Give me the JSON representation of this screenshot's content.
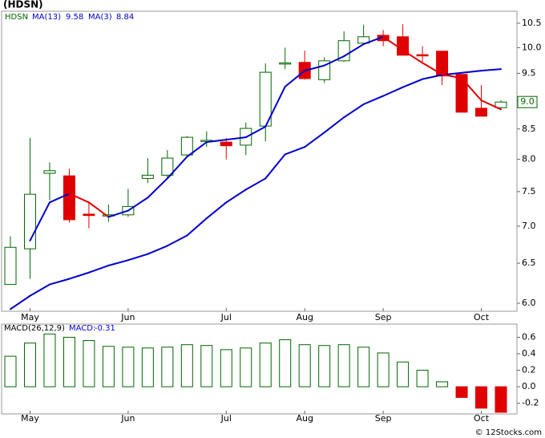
{
  "chart_data": [
    {
      "type": "candlestick",
      "title": "(HDSN)",
      "legend_label": "HDSN",
      "legend_values": [
        9.58,
        8.84
      ],
      "last_label": "9.0",
      "categories": [
        null,
        "May",
        null,
        null,
        null,
        null,
        "Jun",
        null,
        null,
        null,
        null,
        "Jul",
        null,
        null,
        null,
        "Aug",
        null,
        null,
        null,
        "Sep",
        null,
        null,
        null,
        null,
        "Oct",
        null
      ],
      "open": [
        6.23,
        6.69,
        7.78,
        7.74,
        7.17,
        7.15,
        7.16,
        7.7,
        7.75,
        8.07,
        8.29,
        8.28,
        8.23,
        8.55,
        9.68,
        9.71,
        9.38,
        9.74,
        10.09,
        10.25,
        10.22,
        9.86,
        9.93,
        9.48,
        8.86,
        8.87
      ],
      "high": [
        6.86,
        8.35,
        7.95,
        7.85,
        7.34,
        7.31,
        7.54,
        8.02,
        8.15,
        8.38,
        8.46,
        8.35,
        8.61,
        9.69,
        10.0,
        9.94,
        9.81,
        10.33,
        10.47,
        10.36,
        10.48,
        10.03,
        9.93,
        9.48,
        9.28,
        9.0
      ],
      "low": [
        6.23,
        6.3,
        7.37,
        7.05,
        6.97,
        7.06,
        7.13,
        7.63,
        7.7,
        8.05,
        8.2,
        8.0,
        8.07,
        8.29,
        9.58,
        9.38,
        9.32,
        9.72,
        10.07,
        10.03,
        9.84,
        9.72,
        9.28,
        8.79,
        8.72,
        8.86
      ],
      "close": [
        6.71,
        7.46,
        7.82,
        7.09,
        7.15,
        7.16,
        7.28,
        7.75,
        8.02,
        8.36,
        8.31,
        8.22,
        8.51,
        9.52,
        9.7,
        9.4,
        9.74,
        10.14,
        10.22,
        10.14,
        9.85,
        9.84,
        9.45,
        8.79,
        8.72,
        8.97
      ],
      "up_color": "#006600",
      "down_color": "#e00000",
      "series": [
        {
          "name": "MA(13)",
          "color": "#0000cc",
          "values": [
            5.93,
            6.09,
            6.23,
            6.3,
            6.38,
            6.47,
            6.54,
            6.62,
            6.73,
            6.87,
            7.11,
            7.34,
            7.53,
            7.7,
            8.08,
            8.2,
            8.44,
            8.7,
            8.93,
            9.08,
            9.24,
            9.39,
            9.47,
            9.51,
            9.55,
            9.58
          ]
        },
        {
          "name": "MA(3)",
          "color": "#0000cc",
          "down_color": "#e00000",
          "values": [
            null,
            6.8,
            7.34,
            7.47,
            7.34,
            7.13,
            7.22,
            7.41,
            7.7,
            8.04,
            8.28,
            8.32,
            8.36,
            8.54,
            9.25,
            9.55,
            9.65,
            9.83,
            10.07,
            10.22,
            9.95,
            9.7,
            9.48,
            9.41,
            9.0,
            8.84
          ]
        }
      ],
      "log_scale": true,
      "ylim": [
        5.905,
        10.755
      ],
      "yticks": [
        {
          "value": 6,
          "label": "6.0"
        },
        {
          "value": 6.5,
          "label": "6.5"
        },
        {
          "value": 7,
          "label": "7.0"
        },
        {
          "value": 7.5,
          "label": "7.5"
        },
        {
          "value": 8,
          "label": "8.0"
        },
        {
          "value": 8.5,
          "label": "8.5"
        },
        {
          "value": 9,
          "label": "9.0"
        },
        {
          "value": 9.5,
          "label": "9.5"
        },
        {
          "value": 10,
          "label": "10.0"
        },
        {
          "value": 10.5,
          "label": "10.5"
        }
      ]
    },
    {
      "type": "bar",
      "legend_label": "MACD(26,12,9)",
      "value_label": "MACD:",
      "last_value": -0.31,
      "categories": [
        null,
        "May",
        null,
        null,
        null,
        null,
        "Jun",
        null,
        null,
        null,
        null,
        "Jul",
        null,
        null,
        null,
        "Aug",
        null,
        null,
        null,
        "Sep",
        null,
        null,
        null,
        null,
        "Oct",
        null
      ],
      "values": [
        0.37,
        0.53,
        0.64,
        0.6,
        0.56,
        0.49,
        0.48,
        0.47,
        0.48,
        0.51,
        0.5,
        0.45,
        0.47,
        0.53,
        0.57,
        0.51,
        0.5,
        0.51,
        0.48,
        0.41,
        0.3,
        0.2,
        0.06,
        -0.13,
        -0.26,
        -0.31
      ],
      "color": "#006600",
      "negative_color": "#e00000",
      "ylim": [
        -0.33,
        0.76
      ],
      "yticks": [
        -0.2,
        {
          "value": 0,
          "label": "0.0"
        },
        0.2,
        0.4,
        0.6
      ]
    }
  ],
  "footer": "© 12Stocks.com"
}
